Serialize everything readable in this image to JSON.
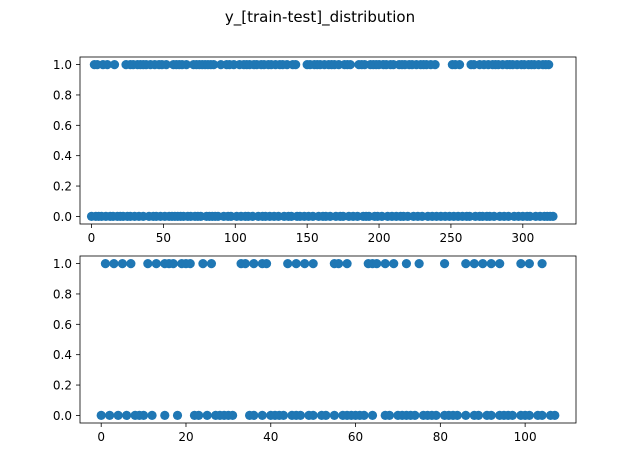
{
  "figure": {
    "suptitle": "y_[train-test]_distribution",
    "marker_color": "#1f77b4"
  },
  "chart_data": [
    {
      "type": "scatter",
      "name": "train",
      "xlim": [
        -8,
        337
      ],
      "ylim": [
        -0.05,
        1.05
      ],
      "xticks": [
        0,
        50,
        100,
        150,
        200,
        250,
        300
      ],
      "yticks": [
        0.0,
        0.2,
        0.4,
        0.6,
        0.8,
        1.0
      ],
      "ytick_labels": [
        "0.0",
        "0.2",
        "0.4",
        "0.6",
        "0.8",
        "1.0"
      ],
      "x_ones": [
        2,
        4,
        8,
        11,
        16,
        24,
        27,
        29,
        32,
        34,
        36,
        38,
        41,
        44,
        47,
        49,
        52,
        57,
        59,
        61,
        63,
        66,
        71,
        73,
        75,
        77,
        79,
        81,
        83,
        85,
        90,
        94,
        96,
        99,
        103,
        106,
        108,
        110,
        113,
        115,
        118,
        120,
        123,
        125,
        128,
        131,
        133,
        136,
        140,
        142,
        150,
        152,
        155,
        157,
        159,
        162,
        165,
        167,
        169,
        172,
        176,
        178,
        180,
        186,
        188,
        190,
        194,
        196,
        198,
        200,
        203,
        205,
        208,
        210,
        214,
        216,
        218,
        221,
        223,
        226,
        229,
        231,
        233,
        236,
        239,
        251,
        253,
        256,
        264,
        266,
        270,
        273,
        276,
        279,
        281,
        283,
        286,
        289,
        291,
        293,
        296,
        299,
        301,
        304,
        306,
        308,
        311,
        314,
        316,
        318
      ],
      "x_zeros": [
        0,
        3,
        5,
        7,
        10,
        13,
        15,
        18,
        20,
        22,
        25,
        27,
        30,
        33,
        36,
        40,
        43,
        45,
        48,
        51,
        54,
        56,
        58,
        60,
        62,
        64,
        67,
        69,
        72,
        74,
        76,
        80,
        82,
        84,
        86,
        88,
        92,
        95,
        97,
        101,
        104,
        107,
        109,
        112,
        116,
        119,
        121,
        124,
        127,
        130,
        134,
        137,
        139,
        143,
        145,
        148,
        151,
        154,
        158,
        161,
        163,
        166,
        170,
        173,
        175,
        179,
        182,
        185,
        189,
        191,
        193,
        197,
        199,
        202,
        206,
        209,
        212,
        215,
        217,
        220,
        224,
        227,
        230,
        234,
        237,
        240,
        243,
        246,
        249,
        252,
        255,
        258,
        261,
        263,
        267,
        270,
        272,
        275,
        277,
        280,
        284,
        287,
        290,
        294,
        297,
        300,
        303,
        305,
        309,
        312,
        315,
        317,
        319,
        321
      ]
    },
    {
      "type": "scatter",
      "name": "test",
      "xlim": [
        -5,
        112
      ],
      "ylim": [
        -0.05,
        1.05
      ],
      "xticks": [
        0,
        20,
        40,
        60,
        80,
        100
      ],
      "yticks": [
        0.0,
        0.2,
        0.4,
        0.6,
        0.8,
        1.0
      ],
      "ytick_labels": [
        "0.0",
        "0.2",
        "0.4",
        "0.6",
        "0.8",
        "1.0"
      ],
      "x_ones": [
        1,
        3,
        5,
        7,
        11,
        13,
        15,
        16,
        17,
        19,
        20,
        21,
        24,
        26,
        33,
        34,
        36,
        38,
        39,
        44,
        46,
        48,
        50,
        55,
        56,
        58,
        63,
        64,
        65,
        67,
        69,
        72,
        75,
        81,
        86,
        88,
        90,
        92,
        94,
        99,
        101,
        104
      ],
      "x_zeros": [
        0,
        2,
        4,
        6,
        8,
        9,
        10,
        12,
        15,
        18,
        22,
        23,
        25,
        27,
        28,
        29,
        30,
        31,
        35,
        36,
        38,
        40,
        41,
        42,
        43,
        45,
        46,
        47,
        49,
        50,
        52,
        53,
        55,
        57,
        58,
        59,
        60,
        61,
        62,
        64,
        67,
        68,
        70,
        71,
        72,
        73,
        74,
        76,
        77,
        78,
        79,
        81,
        82,
        83,
        84,
        86,
        88,
        89,
        91,
        92,
        94,
        95,
        96,
        97,
        99,
        100,
        101,
        103,
        104,
        106,
        107
      ]
    }
  ]
}
